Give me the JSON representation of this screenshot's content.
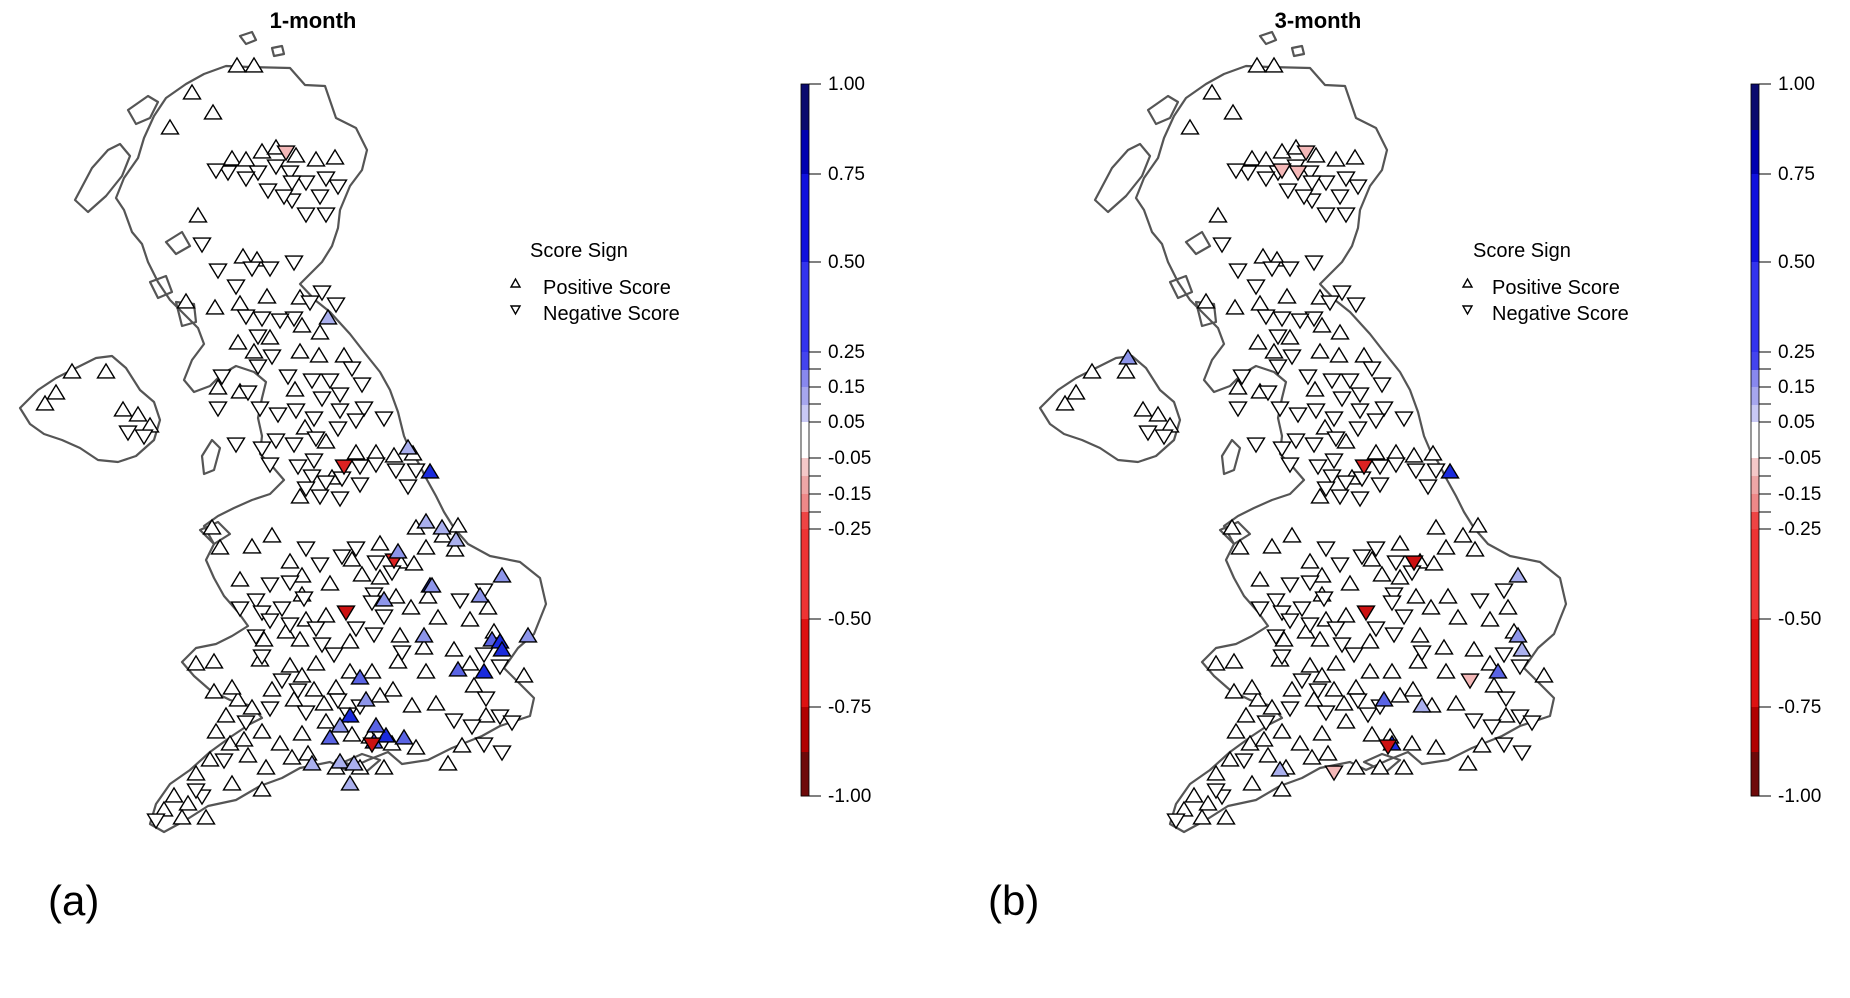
{
  "panels": [
    {
      "id": "a",
      "title": "1-month",
      "panel_label": "(a)",
      "legend": {
        "title": "Score Sign",
        "positive": "Positive Score",
        "negative": "Negative Score"
      },
      "colorbar": {
        "ticks": [
          "1.00",
          "0.75",
          "0.50",
          "0.25",
          "0.15",
          "0.05",
          "-0.05",
          "-0.15",
          "-0.25",
          "-0.50",
          "-0.75",
          "-1.00"
        ],
        "colors": {
          "b1": "#0a0a6e",
          "b2": "#0000b0",
          "b3": "#1111dd",
          "b4": "#3333ee",
          "b5": "#8888ee",
          "b6": "#c8c8f4",
          "w": "#ffffff",
          "r6": "#f4c8c8",
          "r5": "#ee8888",
          "r4": "#ee3333",
          "r3": "#dd1111",
          "r2": "#b00000",
          "r1": "#6e0a0a"
        }
      },
      "highlighted_stations": [
        {
          "shape": "down",
          "color": "#f4b8b8"
        },
        {
          "shape": "up",
          "color": "#aab0ee"
        },
        {
          "shape": "up",
          "color": "#aab0ee"
        },
        {
          "shape": "up",
          "color": "#1a2bdd"
        },
        {
          "shape": "down",
          "color": "#dd2222"
        },
        {
          "shape": "up",
          "color": "#aab0ee"
        },
        {
          "shape": "up",
          "color": "#aab0ee"
        },
        {
          "shape": "up",
          "color": "#aab0ee"
        },
        {
          "shape": "down",
          "color": "#dd2222"
        },
        {
          "shape": "up",
          "color": "#8d95ea"
        },
        {
          "shape": "up",
          "color": "#8d95ea"
        },
        {
          "shape": "up",
          "color": "#8d95ea"
        },
        {
          "shape": "up",
          "color": "#1a2bdd"
        },
        {
          "shape": "down",
          "color": "#cc1111"
        },
        {
          "shape": "up",
          "color": "#8d95ea"
        },
        {
          "shape": "up",
          "color": "#8d95ea"
        },
        {
          "shape": "up",
          "color": "#5a64e4"
        },
        {
          "shape": "up",
          "color": "#1a2bdd"
        },
        {
          "shape": "up",
          "color": "#8d95ea"
        },
        {
          "shape": "up",
          "color": "#1a2bdd"
        },
        {
          "shape": "up",
          "color": "#5a64e4"
        },
        {
          "shape": "up",
          "color": "#1a2bdd"
        },
        {
          "shape": "up",
          "color": "#5a64e4"
        },
        {
          "shape": "up",
          "color": "#8d95ea"
        },
        {
          "shape": "up",
          "color": "#1a2bdd"
        },
        {
          "shape": "up",
          "color": "#5a64e4"
        },
        {
          "shape": "up",
          "color": "#8d95ea"
        },
        {
          "shape": "up",
          "color": "#1a2bdd"
        },
        {
          "shape": "up",
          "color": "#5a64e4"
        },
        {
          "shape": "up",
          "color": "#5a64e4"
        },
        {
          "shape": "up",
          "color": "#aab0ee"
        },
        {
          "shape": "down",
          "color": "#cc1111"
        },
        {
          "shape": "up",
          "color": "#aab0ee"
        },
        {
          "shape": "up",
          "color": "#aab0ee"
        },
        {
          "shape": "up",
          "color": "#aab0ee"
        },
        {
          "shape": "up",
          "color": "#5a64e4"
        },
        {
          "shape": "up",
          "color": "#8d95ea"
        }
      ]
    },
    {
      "id": "b",
      "title": "3-month",
      "panel_label": "(b)",
      "legend": {
        "title": "Score Sign",
        "positive": "Positive Score",
        "negative": "Negative Score"
      },
      "colorbar": {
        "ticks": [
          "1.00",
          "0.75",
          "0.50",
          "0.25",
          "0.15",
          "0.05",
          "-0.05",
          "-0.15",
          "-0.25",
          "-0.50",
          "-0.75",
          "-1.00"
        ],
        "colors": {
          "b1": "#0a0a6e",
          "b2": "#0000b0",
          "b3": "#1111dd",
          "b4": "#3333ee",
          "b5": "#8888ee",
          "b6": "#c8c8f4",
          "w": "#ffffff",
          "r6": "#f4c8c8",
          "r5": "#ee8888",
          "r4": "#ee3333",
          "r3": "#dd1111",
          "r2": "#b00000",
          "r1": "#6e0a0a"
        }
      },
      "highlighted_stations": [
        {
          "shape": "down",
          "color": "#f4b8b8"
        },
        {
          "shape": "down",
          "color": "#f4b8b8"
        },
        {
          "shape": "down",
          "color": "#f4b8b8"
        },
        {
          "shape": "up",
          "color": "#8d95ea"
        },
        {
          "shape": "down",
          "color": "#dd2222"
        },
        {
          "shape": "up",
          "color": "#1a2bdd"
        },
        {
          "shape": "down",
          "color": "#cc1111"
        },
        {
          "shape": "down",
          "color": "#cc1111"
        },
        {
          "shape": "up",
          "color": "#aab0ee"
        },
        {
          "shape": "up",
          "color": "#aab0ee"
        },
        {
          "shape": "up",
          "color": "#8d95ea"
        },
        {
          "shape": "up",
          "color": "#5a64e4"
        },
        {
          "shape": "down",
          "color": "#f4b8b8"
        },
        {
          "shape": "up",
          "color": "#5a64e4"
        },
        {
          "shape": "up",
          "color": "#1a2bdd"
        },
        {
          "shape": "up",
          "color": "#aab0ee"
        },
        {
          "shape": "down",
          "color": "#cc1111"
        },
        {
          "shape": "up",
          "color": "#aab0ee"
        },
        {
          "shape": "down",
          "color": "#f4b8b8"
        }
      ]
    }
  ]
}
